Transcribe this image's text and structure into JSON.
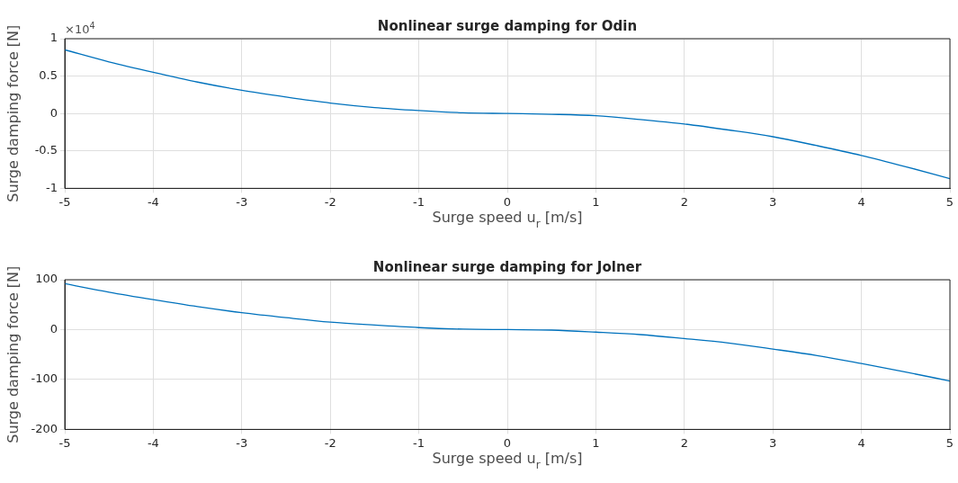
{
  "chart_data": [
    {
      "type": "line",
      "title": "Nonlinear surge damping for Odin",
      "xlabel": "Surge speed u$_{r}$ [m/s]",
      "ylabel": "Surge damping force [N]",
      "annotations": [
        "×10$^{4}$"
      ],
      "x": [
        -5,
        -4.5,
        -4,
        -3.5,
        -3,
        -2.5,
        -2,
        -1.5,
        -1,
        -0.5,
        0,
        0.5,
        1,
        1.5,
        2,
        2.5,
        3,
        3.5,
        4,
        4.5,
        5
      ],
      "series": [
        {
          "color": "#0072bd",
          "values": [
            0.85,
            0.69,
            0.55,
            0.42,
            0.31,
            0.22,
            0.14,
            0.08,
            0.04,
            0.01,
            0,
            -0.01,
            -0.03,
            -0.08,
            -0.14,
            -0.22,
            -0.31,
            -0.43,
            -0.56,
            -0.71,
            -0.87
          ]
        }
      ],
      "xlim": [
        -5,
        5
      ],
      "xticks": [
        -5,
        -4,
        -3,
        -2,
        -1,
        0,
        1,
        2,
        3,
        4,
        5
      ],
      "ylim": [
        -1,
        1
      ],
      "yticks": [
        -1,
        -0.5,
        0,
        0.5,
        1
      ],
      "grid": true,
      "legend": false,
      "marker": "none",
      "line_style": "solid"
    },
    {
      "type": "line",
      "title": "Nonlinear surge damping for Jolner",
      "xlabel": "Surge speed u$_{r}$ [m/s]",
      "ylabel": "Surge damping force [N]",
      "x": [
        -5,
        -4.5,
        -4,
        -3.5,
        -3,
        -2.5,
        -2,
        -1.5,
        -1,
        -0.5,
        0,
        0.5,
        1,
        1.5,
        2,
        2.5,
        3,
        3.5,
        4,
        4.5,
        5
      ],
      "series": [
        {
          "color": "#0072bd",
          "values": [
            92,
            75,
            60,
            46,
            34,
            24,
            15,
            9,
            4,
            1,
            0,
            -1,
            -5,
            -10,
            -18,
            -27,
            -39,
            -52,
            -68,
            -85,
            -103
          ]
        }
      ],
      "xlim": [
        -5,
        5
      ],
      "xticks": [
        -5,
        -4,
        -3,
        -2,
        -1,
        0,
        1,
        2,
        3,
        4,
        5
      ],
      "ylim": [
        -200,
        100
      ],
      "yticks": [
        -200,
        -100,
        0,
        100
      ],
      "grid": true,
      "legend": false,
      "marker": "none",
      "line_style": "solid"
    }
  ]
}
